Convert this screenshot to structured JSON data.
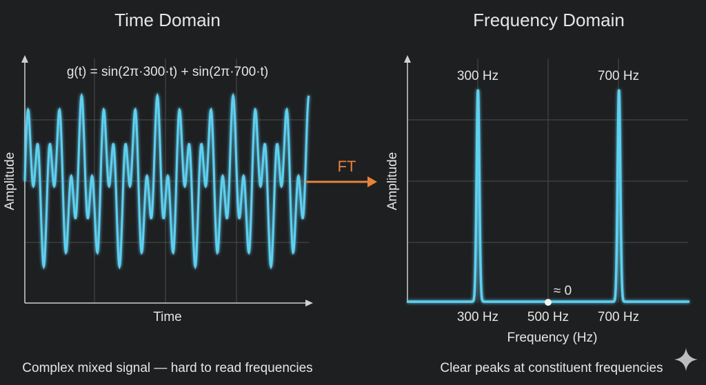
{
  "left_panel": {
    "title": "Time Domain",
    "formula": "g(t) = sin(2π·300·t) + sin(2π·700·t)",
    "xlabel": "Time",
    "ylabel": "Amplitude",
    "caption": "Complex mixed signal — hard to read frequencies"
  },
  "arrow": {
    "label": "FT",
    "color": "#e8833a"
  },
  "right_panel": {
    "title": "Frequency Domain",
    "xlabel": "Frequency (Hz)",
    "ylabel": "Amplitude",
    "caption": "Clear peaks at constituent frequencies",
    "zero_note": "≈ 0"
  },
  "colors": {
    "signal": "#5fd0f0",
    "grid": "#4a4c50",
    "axis": "#d0d0d0",
    "background": "#1e1f21",
    "arrow": "#e8833a"
  },
  "icons": [
    "sparkle-icon"
  ],
  "chart_data": [
    {
      "type": "line",
      "title": "Time Domain",
      "xlabel": "Time",
      "ylabel": "Amplitude",
      "annotation": "g(t) = sin(2π·300·t) + sin(2π·700·t)",
      "series": [
        {
          "frequencies_hz": [
            300,
            700
          ]
        }
      ],
      "grid": true
    },
    {
      "type": "line",
      "title": "Frequency Domain",
      "xlabel": "Frequency (Hz)",
      "ylabel": "Amplitude",
      "x": [
        300,
        500,
        700
      ],
      "tick_labels": [
        "300 Hz",
        "500 Hz",
        "700 Hz"
      ],
      "peaks": [
        {
          "x": 300,
          "label": "300 Hz"
        },
        {
          "x": 700,
          "label": "700 Hz"
        }
      ],
      "marker": {
        "x": 500,
        "label": "≈ 0"
      },
      "grid": true
    }
  ]
}
